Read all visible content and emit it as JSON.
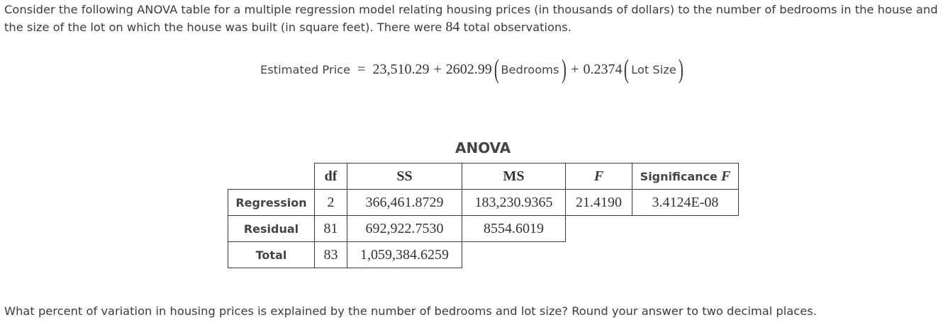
{
  "intro": {
    "text_before": "Consider the following ANOVA table for a multiple regression model relating housing prices  (in thousands of dollars) to the number of bedrooms in the house and the size of the lot on which the house was built (in square feet). There were ",
    "observations": "84",
    "text_after": " total observations."
  },
  "equation": {
    "lhs": "Estimated Price",
    "equals": "=",
    "intercept": "23,510.29",
    "plus1": "+",
    "coef_bedrooms": "2602.99",
    "var_bedrooms": "Bedrooms",
    "plus2": "+",
    "coef_lot": "0.2374",
    "var_lot": "Lot Size",
    "lparen": "(",
    "rparen": ")"
  },
  "anova": {
    "title": "ANOVA",
    "headers": {
      "df": "df",
      "ss": "SS",
      "ms": "MS",
      "f": "F",
      "sig_label": "Significance",
      "sig_f": "F"
    },
    "rows": [
      {
        "label": "Regression",
        "df": "2",
        "ss": "366,461.8729",
        "ms": "183,230.9365",
        "f": "21.4190",
        "sig": "3.4124E-08"
      },
      {
        "label": "Residual",
        "df": "81",
        "ss": "692,922.7530",
        "ms": "8554.6019"
      },
      {
        "label": "Total",
        "df": "83",
        "ss": "1,059,384.6259"
      }
    ]
  },
  "question": "What percent of variation in housing prices is explained by the number of bedrooms and lot size? Round your answer to two decimal places."
}
